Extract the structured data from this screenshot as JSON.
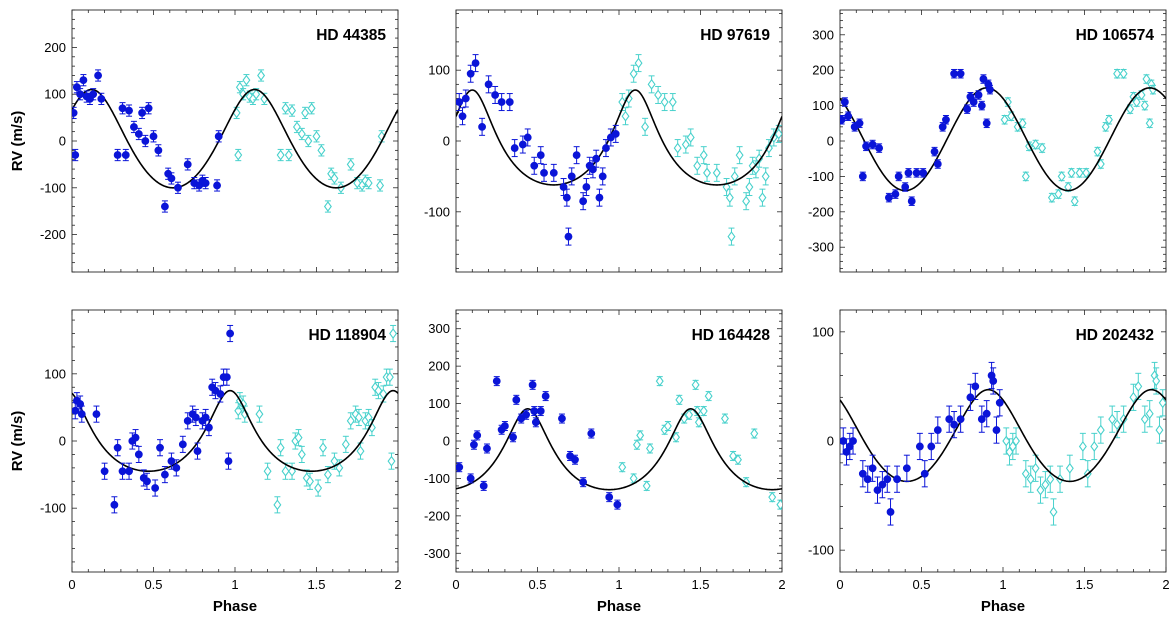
{
  "colors": {
    "filled": "#0a14d8",
    "open": "#48d1cc",
    "fit": "#000000"
  },
  "chart_data": [
    {
      "type": "scatter",
      "title": "HD 44385",
      "xlabel": "",
      "ylabel": "RV (m/s)",
      "xlim": [
        0,
        2
      ],
      "ylim": [
        -280,
        280
      ],
      "xticks": [
        0,
        0.5,
        1,
        1.5,
        2
      ],
      "xtick_labels": [
        "",
        "",
        "",
        "",
        ""
      ],
      "yticks": [
        -200,
        -100,
        0,
        100,
        200
      ],
      "ytick_labels": [
        "-200",
        "-100",
        "0",
        "100",
        "200"
      ],
      "fit": {
        "mean": 5,
        "amp": 105,
        "phase0": 0.12,
        "ecc": 0.12
      },
      "points": [
        [
          0.01,
          60
        ],
        [
          0.02,
          -30
        ],
        [
          0.03,
          115
        ],
        [
          0.05,
          100
        ],
        [
          0.07,
          130
        ],
        [
          0.09,
          95
        ],
        [
          0.11,
          90
        ],
        [
          0.13,
          100
        ],
        [
          0.16,
          140
        ],
        [
          0.18,
          90
        ],
        [
          0.28,
          -30
        ],
        [
          0.31,
          70
        ],
        [
          0.33,
          -30
        ],
        [
          0.35,
          65
        ],
        [
          0.38,
          30
        ],
        [
          0.41,
          15
        ],
        [
          0.43,
          60
        ],
        [
          0.45,
          0
        ],
        [
          0.47,
          70
        ],
        [
          0.5,
          10
        ],
        [
          0.53,
          -20
        ],
        [
          0.57,
          -140
        ],
        [
          0.59,
          -70
        ],
        [
          0.61,
          -80
        ],
        [
          0.65,
          -100
        ],
        [
          0.71,
          -50
        ],
        [
          0.75,
          -90
        ],
        [
          0.78,
          -95
        ],
        [
          0.8,
          -85
        ],
        [
          0.82,
          -90
        ],
        [
          0.89,
          -95
        ],
        [
          0.9,
          10
        ]
      ]
    },
    {
      "type": "scatter",
      "title": "HD 97619",
      "xlabel": "",
      "ylabel": "",
      "xlim": [
        0,
        2
      ],
      "ylim": [
        -185,
        185
      ],
      "xticks": [
        0,
        0.5,
        1,
        1.5,
        2
      ],
      "xtick_labels": [
        "",
        "",
        "",
        "",
        ""
      ],
      "yticks": [
        -100,
        0,
        100
      ],
      "ytick_labels": [
        "-100",
        "0",
        "100"
      ],
      "fit": {
        "mean": 5,
        "amp": 67,
        "phase0": 0.1,
        "ecc": 0.3
      },
      "points": [
        [
          0.02,
          55
        ],
        [
          0.04,
          35
        ],
        [
          0.06,
          60
        ],
        [
          0.09,
          95
        ],
        [
          0.12,
          110
        ],
        [
          0.16,
          20
        ],
        [
          0.2,
          80
        ],
        [
          0.24,
          65
        ],
        [
          0.28,
          55
        ],
        [
          0.33,
          55
        ],
        [
          0.36,
          -10
        ],
        [
          0.41,
          -5
        ],
        [
          0.44,
          5
        ],
        [
          0.48,
          -35
        ],
        [
          0.52,
          -20
        ],
        [
          0.54,
          -45
        ],
        [
          0.6,
          -45
        ],
        [
          0.66,
          -65
        ],
        [
          0.68,
          -80
        ],
        [
          0.69,
          -135
        ],
        [
          0.71,
          -50
        ],
        [
          0.74,
          -20
        ],
        [
          0.78,
          -85
        ],
        [
          0.8,
          -65
        ],
        [
          0.82,
          -35
        ],
        [
          0.84,
          -40
        ],
        [
          0.86,
          -25
        ],
        [
          0.88,
          -80
        ],
        [
          0.9,
          -50
        ],
        [
          0.92,
          -10
        ],
        [
          0.95,
          5
        ],
        [
          0.98,
          10
        ]
      ]
    },
    {
      "type": "scatter",
      "title": "HD 106574",
      "xlabel": "",
      "ylabel": "",
      "xlim": [
        0,
        2
      ],
      "ylim": [
        -370,
        370
      ],
      "xticks": [
        0,
        0.5,
        1,
        1.5,
        2
      ],
      "xtick_labels": [
        "",
        "",
        "",
        "",
        ""
      ],
      "yticks": [
        -300,
        -200,
        -100,
        0,
        100,
        200,
        300
      ],
      "ytick_labels": [
        "-300",
        "-200",
        "-100",
        "0",
        "100",
        "200",
        "300"
      ],
      "fit": {
        "mean": 5,
        "amp": 145,
        "phase0": 0.9,
        "ecc": 0.02
      },
      "points": [
        [
          0.01,
          60
        ],
        [
          0.03,
          110
        ],
        [
          0.05,
          70
        ],
        [
          0.09,
          40
        ],
        [
          0.12,
          50
        ],
        [
          0.14,
          -100
        ],
        [
          0.16,
          -15
        ],
        [
          0.2,
          -10
        ],
        [
          0.24,
          -20
        ],
        [
          0.3,
          -160
        ],
        [
          0.34,
          -150
        ],
        [
          0.36,
          -100
        ],
        [
          0.4,
          -130
        ],
        [
          0.42,
          -90
        ],
        [
          0.44,
          -170
        ],
        [
          0.47,
          -90
        ],
        [
          0.51,
          -90
        ],
        [
          0.58,
          -30
        ],
        [
          0.6,
          -65
        ],
        [
          0.63,
          40
        ],
        [
          0.65,
          60
        ],
        [
          0.7,
          190
        ],
        [
          0.74,
          190
        ],
        [
          0.78,
          90
        ],
        [
          0.8,
          125
        ],
        [
          0.82,
          110
        ],
        [
          0.85,
          130
        ],
        [
          0.87,
          100
        ],
        [
          0.88,
          175
        ],
        [
          0.9,
          50
        ],
        [
          0.91,
          160
        ],
        [
          0.92,
          145
        ]
      ]
    },
    {
      "type": "scatter",
      "title": "HD 118904",
      "xlabel": "",
      "ylabel": "RV (m/s)",
      "xlim": [
        0,
        2
      ],
      "ylim": [
        -195,
        195
      ],
      "xticks": [
        0,
        0.5,
        1,
        1.5,
        2
      ],
      "xtick_labels": [
        "0",
        "0.5",
        "1",
        "1.5",
        "2"
      ],
      "yticks": [
        -100,
        0,
        100
      ],
      "ytick_labels": [
        "-100",
        "0",
        "100"
      ],
      "fit": {
        "mean": 15,
        "amp": 60,
        "phase0": 0.97,
        "ecc": 0.3
      },
      "points": [
        [
          0.02,
          45
        ],
        [
          0.03,
          60
        ],
        [
          0.05,
          55
        ],
        [
          0.06,
          40
        ],
        [
          0.15,
          40
        ],
        [
          0.2,
          -45
        ],
        [
          0.26,
          -95
        ],
        [
          0.28,
          -10
        ],
        [
          0.31,
          -45
        ],
        [
          0.35,
          -45
        ],
        [
          0.37,
          0
        ],
        [
          0.39,
          5
        ],
        [
          0.41,
          -20
        ],
        [
          0.44,
          -55
        ],
        [
          0.46,
          -60
        ],
        [
          0.51,
          -70
        ],
        [
          0.54,
          -10
        ],
        [
          0.57,
          -50
        ],
        [
          0.61,
          -30
        ],
        [
          0.64,
          -40
        ],
        [
          0.68,
          -5
        ],
        [
          0.71,
          30
        ],
        [
          0.74,
          40
        ],
        [
          0.76,
          35
        ],
        [
          0.77,
          -15
        ],
        [
          0.8,
          30
        ],
        [
          0.82,
          35
        ],
        [
          0.84,
          20
        ],
        [
          0.86,
          80
        ],
        [
          0.88,
          75
        ],
        [
          0.91,
          70
        ],
        [
          0.93,
          95
        ],
        [
          0.95,
          95
        ],
        [
          0.96,
          -30
        ],
        [
          0.97,
          160
        ]
      ]
    },
    {
      "type": "scatter",
      "title": "HD 164428",
      "xlabel": "Phase",
      "ylabel": "",
      "xlim": [
        0,
        2
      ],
      "ylim": [
        -350,
        350
      ],
      "xticks": [
        0,
        0.5,
        1,
        1.5,
        2
      ],
      "xtick_labels": [
        "0",
        "0.5",
        "1",
        "1.5",
        "2"
      ],
      "yticks": [
        -300,
        -200,
        -100,
        0,
        100,
        200,
        300
      ],
      "ytick_labels": [
        "-300",
        "-200",
        "-100",
        "0",
        "100",
        "200",
        "300"
      ],
      "fit": {
        "mean": -22,
        "amp": 108,
        "phase0": 0.44,
        "ecc": 0.3
      },
      "points": [
        [
          0.02,
          -70
        ],
        [
          0.09,
          -100
        ],
        [
          0.11,
          -10
        ],
        [
          0.13,
          15
        ],
        [
          0.17,
          -120
        ],
        [
          0.19,
          -20
        ],
        [
          0.25,
          160
        ],
        [
          0.28,
          30
        ],
        [
          0.3,
          40
        ],
        [
          0.35,
          10
        ],
        [
          0.37,
          110
        ],
        [
          0.4,
          60
        ],
        [
          0.43,
          70
        ],
        [
          0.47,
          150
        ],
        [
          0.48,
          80
        ],
        [
          0.49,
          50
        ],
        [
          0.52,
          80
        ],
        [
          0.55,
          120
        ],
        [
          0.65,
          60
        ],
        [
          0.7,
          -40
        ],
        [
          0.73,
          -50
        ],
        [
          0.78,
          -110
        ],
        [
          0.83,
          20
        ],
        [
          0.94,
          -150
        ],
        [
          0.99,
          -170
        ]
      ]
    },
    {
      "type": "scatter",
      "title": "HD 202432",
      "xlabel": "",
      "ylabel": "",
      "xlim": [
        0,
        2
      ],
      "ylim": [
        -120,
        120
      ],
      "xticks": [
        0,
        0.5,
        1,
        1.5,
        2
      ],
      "xtick_labels": [
        "0",
        "0.5",
        "1",
        "1.5",
        "2"
      ],
      "yticks": [
        -100,
        0,
        100
      ],
      "ytick_labels": [
        "-100",
        "0",
        "100"
      ],
      "fit": {
        "mean": 5,
        "amp": 42,
        "phase0": 0.91,
        "ecc": 0.1
      },
      "points": [
        [
          0.02,
          0
        ],
        [
          0.04,
          -10
        ],
        [
          0.06,
          -5
        ],
        [
          0.08,
          0
        ],
        [
          0.14,
          -30
        ],
        [
          0.17,
          -35
        ],
        [
          0.2,
          -25
        ],
        [
          0.23,
          -45
        ],
        [
          0.26,
          -40
        ],
        [
          0.29,
          -35
        ],
        [
          0.31,
          -65
        ],
        [
          0.35,
          -35
        ],
        [
          0.41,
          -25
        ],
        [
          0.49,
          -5
        ],
        [
          0.52,
          -30
        ],
        [
          0.56,
          -5
        ],
        [
          0.6,
          10
        ],
        [
          0.67,
          20
        ],
        [
          0.7,
          15
        ],
        [
          0.74,
          20
        ],
        [
          0.8,
          40
        ],
        [
          0.83,
          50
        ],
        [
          0.87,
          20
        ],
        [
          0.9,
          25
        ],
        [
          0.93,
          60
        ],
        [
          0.94,
          55
        ],
        [
          0.96,
          10
        ],
        [
          0.98,
          35
        ]
      ]
    }
  ]
}
